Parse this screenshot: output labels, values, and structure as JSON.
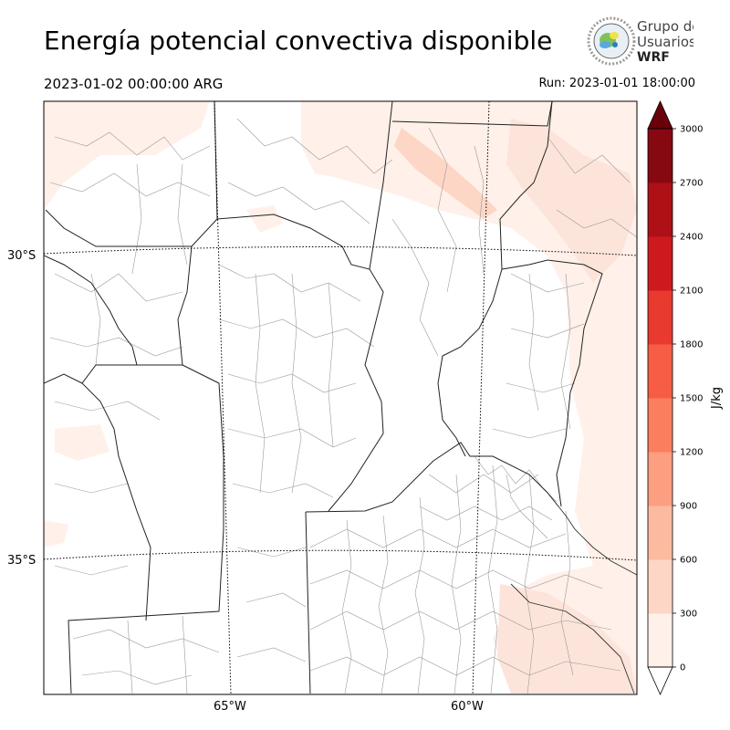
{
  "header": {
    "title": "Energía potencial convectiva disponible",
    "valid_time": "2023-01-02 00:00:00 ARG",
    "run_time": "Run: 2023-01-01 18:00:00"
  },
  "logo": {
    "line1": "Grupo de",
    "line2": "Usuarios",
    "line3": "WRF"
  },
  "map": {
    "lat_labels": [
      "30°S",
      "35°S"
    ],
    "lon_labels": [
      "65°W",
      "60°W"
    ]
  },
  "colorbar": {
    "unit_label": "J/kg",
    "ticks": [
      "0",
      "300",
      "600",
      "900",
      "1200",
      "1500",
      "1800",
      "2100",
      "2400",
      "2700",
      "3000"
    ],
    "colors": [
      "#fff0ea",
      "#fdd6c5",
      "#fcbba0",
      "#fc9e80",
      "#fb7e5f",
      "#f65d44",
      "#e93a2f",
      "#ce1a1e",
      "#ad1016",
      "#860811",
      "#6a0009"
    ]
  }
}
